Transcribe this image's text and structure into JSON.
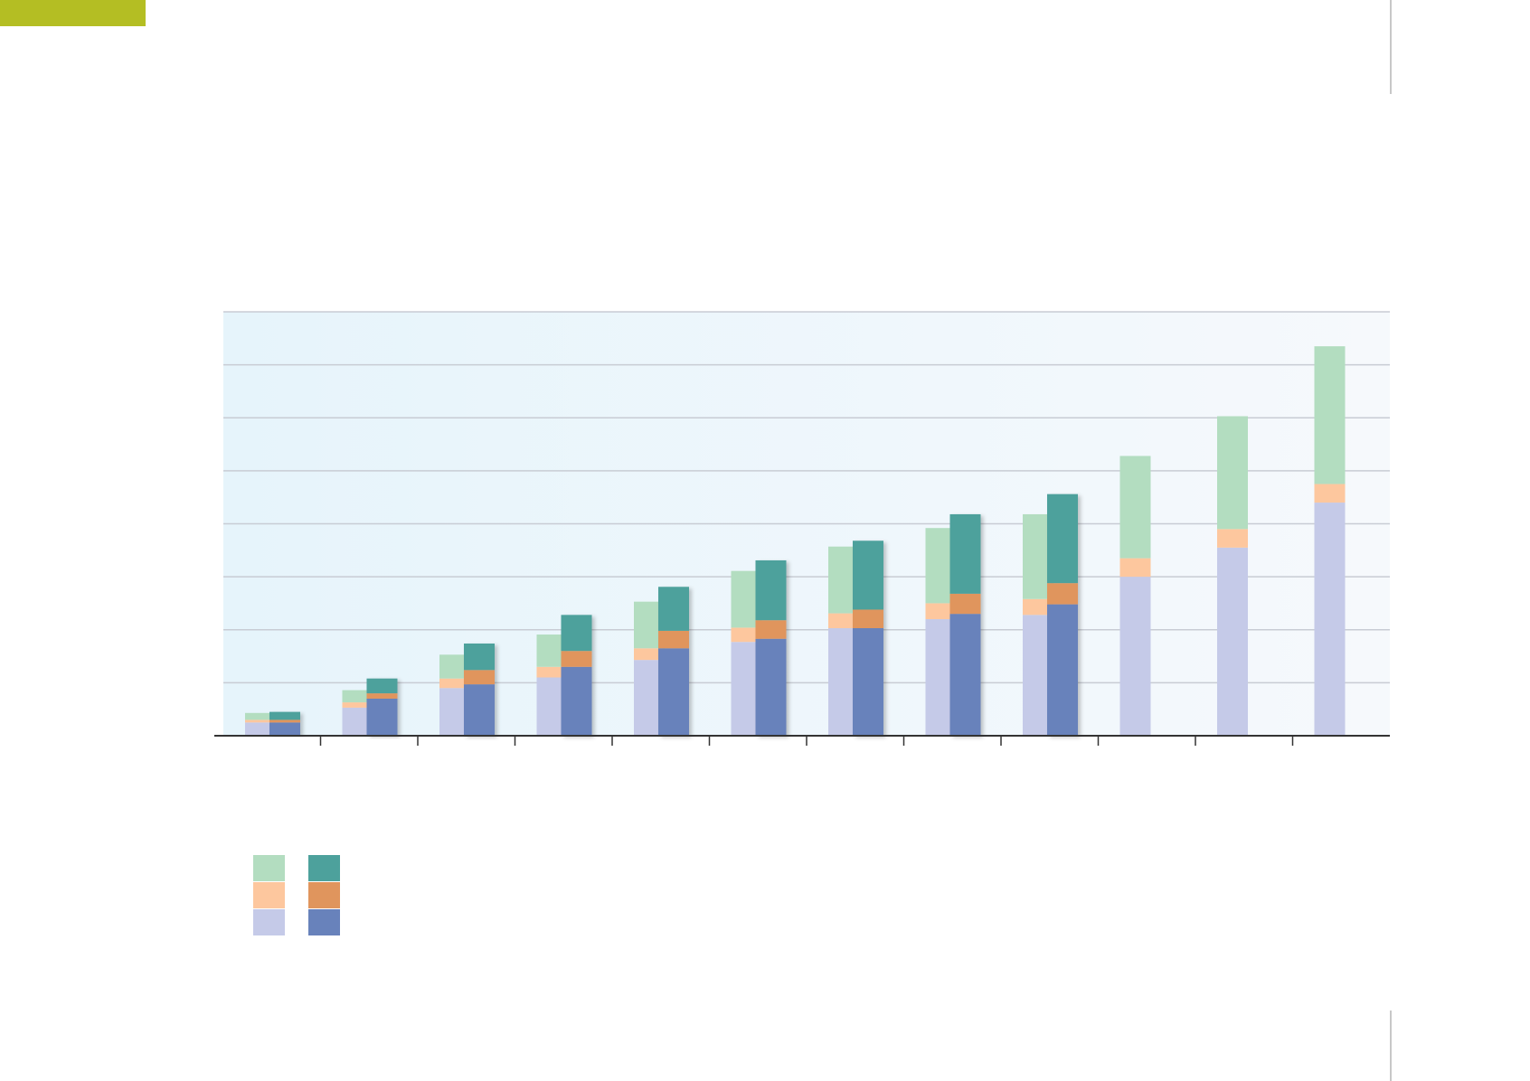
{
  "colors": {
    "accent": "#b4be23",
    "series_light": [
      "#b3ddc0",
      "#fdc79e",
      "#c5cae8"
    ],
    "series_dark": [
      "#4da19c",
      "#e0955d",
      "#6882bb"
    ],
    "grid": "#c8ccd4",
    "axis": "#333333",
    "plot_bg_left": "#e6f4fb",
    "plot_bg_right": "#f6f9fc"
  },
  "chart_data": {
    "type": "bar",
    "stacked": true,
    "grouped": true,
    "title": "",
    "xlabel": "",
    "ylabel": "",
    "categories": [
      "",
      "",
      "",
      "",
      "",
      "",
      "",
      "",
      "",
      "",
      "",
      ""
    ],
    "ylim": [
      0,
      8
    ],
    "grid": true,
    "gridlines": [
      1,
      2,
      3,
      4,
      5,
      6,
      7,
      8
    ],
    "groups": [
      {
        "style": "light",
        "series": [
          {
            "values": [
              0.13,
              0.23,
              0.45,
              0.61,
              0.88,
              1.07,
              1.26,
              1.42,
              1.6,
              1.93,
              2.13,
              2.6
            ]
          },
          {
            "values": [
              0.05,
              0.1,
              0.18,
              0.2,
              0.22,
              0.27,
              0.28,
              0.3,
              0.3,
              0.35,
              0.35,
              0.35
            ]
          },
          {
            "values": [
              0.25,
              0.53,
              0.9,
              1.1,
              1.43,
              1.77,
              2.03,
              2.2,
              2.28,
              3.0,
              3.55,
              4.4
            ]
          }
        ]
      },
      {
        "style": "dark",
        "series": [
          {
            "values": [
              0.15,
              0.28,
              0.5,
              0.68,
              0.83,
              1.13,
              1.3,
              1.5,
              1.68,
              null,
              null,
              null
            ]
          },
          {
            "values": [
              0.05,
              0.1,
              0.27,
              0.3,
              0.33,
              0.35,
              0.35,
              0.38,
              0.4,
              null,
              null,
              null
            ]
          },
          {
            "values": [
              0.25,
              0.7,
              0.97,
              1.3,
              1.65,
              1.83,
              2.03,
              2.3,
              2.48,
              null,
              null,
              null
            ]
          }
        ]
      }
    ],
    "legend": {
      "position": "bottom-left",
      "labels": [
        "",
        "",
        "",
        "",
        "",
        ""
      ]
    }
  }
}
